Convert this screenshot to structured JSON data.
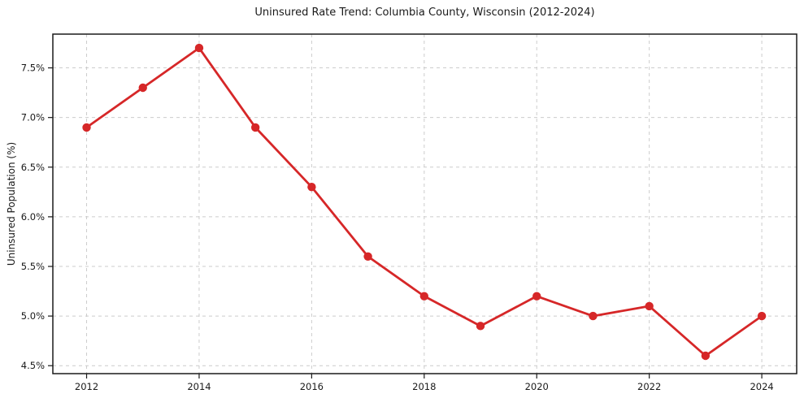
{
  "chart_data": {
    "type": "line",
    "title": "Uninsured Rate Trend: Columbia County, Wisconsin (2012-2024)",
    "xlabel": "",
    "ylabel": "Uninsured Population (%)",
    "x": [
      2012,
      2013,
      2014,
      2015,
      2016,
      2017,
      2018,
      2019,
      2020,
      2021,
      2022,
      2023,
      2024
    ],
    "values": [
      6.9,
      7.3,
      7.7,
      6.9,
      6.3,
      5.6,
      5.2,
      4.9,
      5.2,
      5.0,
      5.1,
      4.6,
      5.0
    ],
    "xlim": [
      2011.4,
      2024.62
    ],
    "ylim": [
      4.42,
      7.84
    ],
    "xticks": {
      "values": [
        2012,
        2014,
        2016,
        2018,
        2020,
        2022,
        2024
      ],
      "labels": [
        "2012",
        "2014",
        "2016",
        "2018",
        "2020",
        "2022",
        "2024"
      ]
    },
    "yticks": {
      "values": [
        4.5,
        5.0,
        5.5,
        6.0,
        6.5,
        7.0,
        7.5
      ],
      "labels": [
        "4.5%",
        "5.0%",
        "5.5%",
        "6.0%",
        "6.5%",
        "7.0%",
        "7.5%"
      ]
    },
    "grid": true,
    "grid_style": "dashed",
    "legend": false,
    "line_color": "#d62728",
    "marker_color": "#d62728",
    "marker_shape": "circle",
    "grid_color": "#cccccc",
    "spine_color": "#1a1a1a",
    "tick_label_color": "#1a1a1a",
    "background": "#ffffff"
  }
}
